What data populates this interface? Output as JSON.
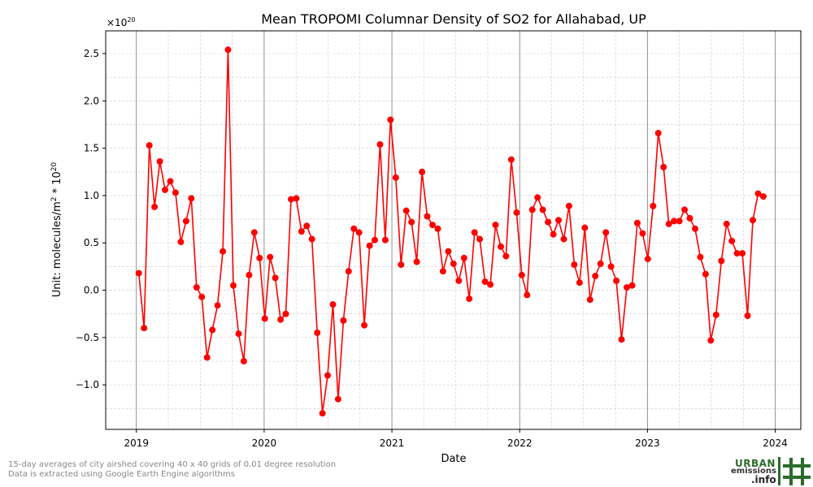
{
  "chart_data": {
    "type": "line",
    "title": "Mean TROPOMI Columnar Density of SO2 for Allahabad, UP",
    "xlabel": "Date",
    "ylabel_text": "Unit: molecules/m",
    "ylabel_sup1": "2",
    "ylabel_mid": " * 10",
    "ylabel_sup2": "20",
    "offset_base": "×10",
    "offset_exp": "20",
    "xlim": [
      2018.76,
      2024.2
    ],
    "ylim": [
      -1.47,
      2.74
    ],
    "x_ticks": [
      2019,
      2020,
      2021,
      2022,
      2023,
      2024
    ],
    "x_tick_labels": [
      "2019",
      "2020",
      "2021",
      "2022",
      "2023",
      "2024"
    ],
    "y_ticks": [
      -1.0,
      -0.5,
      0.0,
      0.5,
      1.0,
      1.5,
      2.0,
      2.5
    ],
    "y_tick_labels": [
      "−1.0",
      "−0.5",
      "0.0",
      "0.5",
      "1.0",
      "1.5",
      "2.0",
      "2.5"
    ],
    "grid": true,
    "color": "#ff0000",
    "series": [
      {
        "x": [
          "2019-01-08",
          "2019-01-23",
          "2019-02-07",
          "2019-02-22",
          "2019-03-09",
          "2019-03-24",
          "2019-04-08",
          "2019-04-23",
          "2019-05-08",
          "2019-05-23",
          "2019-06-07",
          "2019-06-22",
          "2019-07-07",
          "2019-07-22",
          "2019-08-06",
          "2019-08-21",
          "2019-09-05",
          "2019-09-20",
          "2019-10-05",
          "2019-10-20",
          "2019-11-04",
          "2019-11-19",
          "2019-12-04",
          "2019-12-19",
          "2020-01-03",
          "2020-01-18",
          "2020-02-02",
          "2020-02-17",
          "2020-03-03",
          "2020-03-18",
          "2020-04-02",
          "2020-04-17",
          "2020-05-02",
          "2020-05-17",
          "2020-06-01",
          "2020-06-16",
          "2020-07-01",
          "2020-07-16",
          "2020-07-31",
          "2020-08-15",
          "2020-08-30",
          "2020-09-14",
          "2020-09-29",
          "2020-10-14",
          "2020-10-29",
          "2020-11-13",
          "2020-11-28",
          "2020-12-13",
          "2020-12-28",
          "2021-01-12",
          "2021-01-27",
          "2021-02-11",
          "2021-02-26",
          "2021-03-13",
          "2021-03-28",
          "2021-04-12",
          "2021-04-27",
          "2021-05-12",
          "2021-05-27",
          "2021-06-11",
          "2021-06-26",
          "2021-07-11",
          "2021-07-26",
          "2021-08-10",
          "2021-08-25",
          "2021-09-09",
          "2021-09-24",
          "2021-10-09",
          "2021-10-24",
          "2021-11-08",
          "2021-11-23",
          "2021-12-08",
          "2021-12-23",
          "2022-01-07",
          "2022-01-22",
          "2022-02-06",
          "2022-02-21",
          "2022-03-08",
          "2022-03-23",
          "2022-04-07",
          "2022-04-22",
          "2022-05-07",
          "2022-05-22",
          "2022-06-06",
          "2022-06-21",
          "2022-07-06",
          "2022-07-21",
          "2022-08-05",
          "2022-08-20",
          "2022-09-04",
          "2022-09-19",
          "2022-10-04",
          "2022-10-19",
          "2022-11-03",
          "2022-11-18",
          "2022-12-03",
          "2022-12-18",
          "2023-01-02",
          "2023-01-17",
          "2023-02-01",
          "2023-02-16",
          "2023-03-03",
          "2023-03-18",
          "2023-04-02",
          "2023-04-17",
          "2023-05-02",
          "2023-05-17",
          "2023-06-01",
          "2023-06-16",
          "2023-07-01",
          "2023-07-16",
          "2023-07-31",
          "2023-08-15",
          "2023-08-30",
          "2023-09-14",
          "2023-09-29",
          "2023-10-14",
          "2023-10-29",
          "2023-11-13",
          "2023-11-28"
        ],
        "y": [
          0.18,
          -0.4,
          1.53,
          0.88,
          1.36,
          1.06,
          1.15,
          1.03,
          0.51,
          0.73,
          0.97,
          0.03,
          -0.07,
          -0.71,
          -0.42,
          -0.16,
          0.41,
          2.54,
          0.05,
          -0.46,
          -0.75,
          0.16,
          0.61,
          0.34,
          -0.3,
          0.35,
          0.13,
          -0.31,
          -0.25,
          0.96,
          0.97,
          0.62,
          0.68,
          0.54,
          -0.45,
          -1.3,
          -0.9,
          -0.15,
          -1.15,
          -0.32,
          0.2,
          0.65,
          0.61,
          -0.37,
          0.47,
          0.53,
          1.54,
          0.53,
          1.8,
          1.19,
          0.27,
          0.84,
          0.72,
          0.3,
          1.25,
          0.78,
          0.69,
          0.65,
          0.2,
          0.41,
          0.28,
          0.1,
          0.34,
          -0.09,
          0.61,
          0.54,
          0.09,
          0.06,
          0.69,
          0.46,
          0.36,
          1.38,
          0.82,
          0.16,
          -0.05,
          0.85,
          0.98,
          0.85,
          0.72,
          0.59,
          0.74,
          0.54,
          0.89,
          0.27,
          0.08,
          0.66,
          -0.1,
          0.15,
          0.28,
          0.61,
          0.25,
          0.1,
          -0.52,
          0.03,
          0.05,
          0.71,
          0.6,
          0.33,
          0.89,
          1.66,
          1.3,
          0.7,
          0.73,
          0.73,
          0.85,
          0.76,
          0.65,
          0.35,
          0.17,
          -0.53,
          -0.26,
          0.31,
          0.7,
          0.52,
          0.39,
          0.39,
          -0.27,
          0.74,
          1.02,
          0.99
        ]
      }
    ]
  },
  "footnote": {
    "line1": "15-day averages of city airshed covering 40 x 40 grids of 0.01 degree resolution",
    "line2": "Data is extracted using Google Earth Engine algorithms"
  },
  "logo": {
    "urban": "URBAN",
    "emissions": "emissions",
    "info": ".info",
    "color": "#2a6b2a"
  }
}
